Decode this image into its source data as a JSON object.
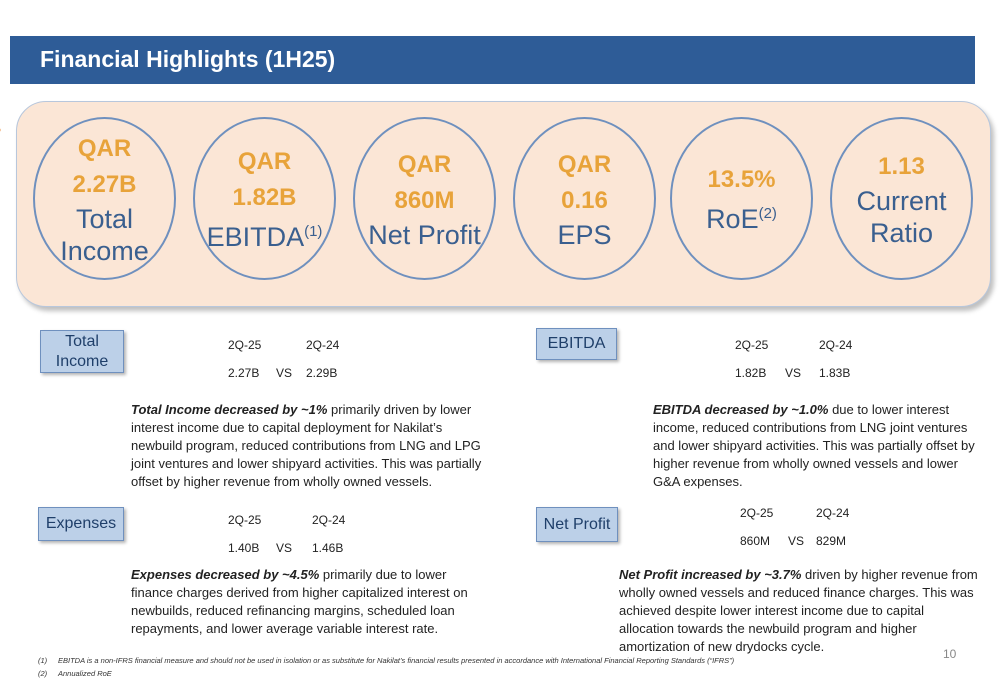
{
  "header": {
    "title": "Financial Highlights (1H25)"
  },
  "kpis": [
    {
      "v1": "QAR",
      "v2": "2.27B",
      "l1": "Total",
      "l2": "Income"
    },
    {
      "v1": "QAR",
      "v2": "1.82B",
      "l1": "EBITDA",
      "sup": "(1)"
    },
    {
      "v1": "QAR",
      "v2": "860M",
      "l1": "Net Profit"
    },
    {
      "v1": "QAR",
      "v2": "0.16",
      "l1": "EPS"
    },
    {
      "v1": "13.5%",
      "l1": "RoE",
      "sup": "(2)"
    },
    {
      "v1": "1.13",
      "l1": "Current",
      "l2": "Ratio"
    }
  ],
  "sections": {
    "total_income": {
      "tag_l1": "Total",
      "tag_l2": "Income",
      "h1": "2Q-25",
      "h2": "2Q-24",
      "v1": "2.27B",
      "vs": "VS",
      "v2": "2.29B",
      "lead": "Total Income decreased by ~1%",
      "text": " primarily driven by lower interest income due to capital deployment for Nakilat’s newbuild program, reduced contributions from LNG and LPG joint ventures and lower shipyard activities. This was partially offset by higher revenue from wholly owned vessels."
    },
    "ebitda": {
      "tag": "EBITDA",
      "h1": "2Q-25",
      "h2": "2Q-24",
      "v1": "1.82B",
      "vs": "VS",
      "v2": "1.83B",
      "lead": "EBITDA decreased by ~1.0%",
      "text": " due to lower interest income, reduced contributions from LNG joint ventures and lower shipyard activities. This was partially offset by higher revenue from wholly owned vessels and lower G&A expenses."
    },
    "expenses": {
      "tag": "Expenses",
      "h1": "2Q-25",
      "h2": "2Q-24",
      "v1": "1.40B",
      "vs": "VS",
      "v2": "1.46B",
      "lead": "Expenses decreased by ~4.5%",
      "text": " primarily due to lower finance charges derived from higher capitalized interest on newbuilds, reduced refinancing margins, scheduled loan repayments, and lower average variable interest rate."
    },
    "net_profit": {
      "tag": "Net Profit",
      "h1": "2Q-25",
      "h2": "2Q-24",
      "v1": "860M",
      "vs": "VS",
      "v2": "829M",
      "lead": "Net Profit increased by ~3.7%",
      "text": " driven by higher revenue from wholly owned vessels and reduced finance charges. This was achieved despite lower interest income due to capital allocation towards the newbuild program and higher amortization of new drydocks cycle."
    }
  },
  "footnotes": [
    {
      "n": "(1)",
      "text": "EBITDA is a non-IFRS financial measure and  should not be used in isolation or as substitute for Nakilat’s financial results presented in accordance with International Financial Reporting Standards (“IFRS”)"
    },
    {
      "n": "(2)",
      "text": "Annualized RoE"
    }
  ],
  "page_number": "10"
}
